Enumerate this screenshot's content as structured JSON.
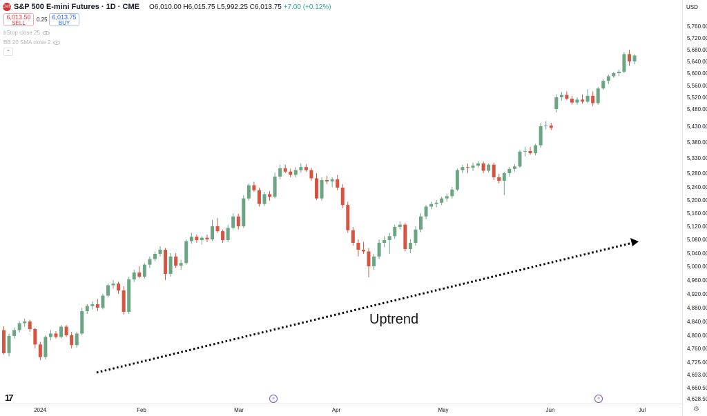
{
  "header": {
    "title": "S&P 500 E-mini Futures · 1D · CME",
    "open": "O6,010.00",
    "high": "H6,015.75",
    "low": "L5,992.25",
    "close": "C6,013.75",
    "change": "+7.00 (+0.12%)"
  },
  "trade": {
    "sell_price": "6,013.50",
    "sell_label": "SELL",
    "spread": "0.25",
    "buy_price": "6,013.75",
    "buy_label": "BUY"
  },
  "indicators": [
    {
      "label": "bStop close 25"
    },
    {
      "label": "BB 20 SMA close 2"
    }
  ],
  "currency": "USD",
  "colors": {
    "up": "#6ba583",
    "down": "#d75442",
    "arrow": "#000000",
    "event": "#7e57c2"
  },
  "chart_data": {
    "type": "candlestick",
    "title": "S&P 500 E-mini Futures · 1D · CME",
    "y_ticks": [
      5760,
      5720,
      5680,
      5640,
      5600,
      5560,
      5520,
      5480,
      5430,
      5380,
      5330,
      5280,
      5240,
      5200,
      5160,
      5120,
      5080,
      5040,
      5000,
      4960,
      4920,
      4880,
      4840,
      4800,
      4760,
      4725,
      4693,
      4660.5,
      4628.5
    ],
    "y_tick_labels": [
      "5,760.00",
      "5,720.00",
      "5,680.00",
      "5,640.00",
      "5,600.00",
      "5,560.00",
      "5,520.00",
      "5,480.00",
      "5,430.00",
      "5,380.00",
      "5,330.00",
      "5,280.00",
      "5,240.00",
      "5,200.00",
      "5,160.00",
      "5,120.00",
      "5,080.00",
      "5,040.00",
      "5,000.00",
      "4,960.00",
      "4,920.00",
      "4,880.00",
      "4,840.00",
      "4,800.00",
      "4,760.00",
      "4,725.00",
      "4,693.00",
      "4,660.50",
      "4,628.50"
    ],
    "x_labels": [
      "2024",
      "Feb",
      "Mar",
      "Apr",
      "May",
      "Jun",
      "Jul"
    ],
    "annotation": "Uptrend",
    "candles": [
      [
        4815,
        4826,
        4744,
        4748
      ],
      [
        4748,
        4805,
        4740,
        4798
      ],
      [
        4798,
        4822,
        4790,
        4815
      ],
      [
        4815,
        4840,
        4808,
        4835
      ],
      [
        4835,
        4848,
        4825,
        4840
      ],
      [
        4840,
        4845,
        4810,
        4818
      ],
      [
        4818,
        4822,
        4760,
        4772
      ],
      [
        4772,
        4780,
        4730,
        4738
      ],
      [
        4738,
        4800,
        4732,
        4795
      ],
      [
        4795,
        4815,
        4785,
        4805
      ],
      [
        4805,
        4812,
        4790,
        4795
      ],
      [
        4795,
        4830,
        4790,
        4825
      ],
      [
        4825,
        4830,
        4795,
        4800
      ],
      [
        4800,
        4810,
        4760,
        4770
      ],
      [
        4770,
        4810,
        4762,
        4805
      ],
      [
        4805,
        4880,
        4800,
        4870
      ],
      [
        4870,
        4890,
        4862,
        4885
      ],
      [
        4885,
        4898,
        4875,
        4890
      ],
      [
        4890,
        4905,
        4870,
        4880
      ],
      [
        4880,
        4920,
        4875,
        4915
      ],
      [
        4915,
        4950,
        4910,
        4945
      ],
      [
        4945,
        4960,
        4935,
        4950
      ],
      [
        4950,
        4955,
        4920,
        4930
      ],
      [
        4930,
        4942,
        4860,
        4868
      ],
      [
        4868,
        4970,
        4862,
        4962
      ],
      [
        4962,
        4990,
        4955,
        4982
      ],
      [
        4982,
        5000,
        4965,
        4970
      ],
      [
        4970,
        5010,
        4965,
        5005
      ],
      [
        5005,
        5030,
        4995,
        5022
      ],
      [
        5022,
        5045,
        5015,
        5038
      ],
      [
        5038,
        5060,
        5030,
        5050
      ],
      [
        5050,
        5055,
        4960,
        4978
      ],
      [
        4978,
        5040,
        4970,
        5030
      ],
      [
        5030,
        5040,
        4995,
        5002
      ],
      [
        5002,
        5020,
        4990,
        5010
      ],
      [
        5010,
        5080,
        5005,
        5075
      ],
      [
        5075,
        5100,
        5068,
        5088
      ],
      [
        5088,
        5095,
        5070,
        5078
      ],
      [
        5078,
        5090,
        5065,
        5085
      ],
      [
        5085,
        5095,
        5072,
        5080
      ],
      [
        5080,
        5140,
        5075,
        5120
      ],
      [
        5120,
        5145,
        5100,
        5105
      ],
      [
        5105,
        5110,
        5070,
        5078
      ],
      [
        5078,
        5125,
        5072,
        5115
      ],
      [
        5115,
        5160,
        5110,
        5150
      ],
      [
        5150,
        5158,
        5110,
        5120
      ],
      [
        5120,
        5215,
        5115,
        5205
      ],
      [
        5205,
        5250,
        5198,
        5245
      ],
      [
        5245,
        5255,
        5225,
        5230
      ],
      [
        5230,
        5238,
        5180,
        5188
      ],
      [
        5188,
        5225,
        5182,
        5218
      ],
      [
        5218,
        5228,
        5198,
        5210
      ],
      [
        5210,
        5282,
        5205,
        5270
      ],
      [
        5270,
        5308,
        5262,
        5296
      ],
      [
        5296,
        5308,
        5280,
        5285
      ],
      [
        5285,
        5295,
        5268,
        5275
      ],
      [
        5275,
        5300,
        5268,
        5290
      ],
      [
        5290,
        5312,
        5282,
        5300
      ],
      [
        5300,
        5310,
        5285,
        5290
      ],
      [
        5290,
        5298,
        5258,
        5265
      ],
      [
        5265,
        5280,
        5200,
        5205
      ],
      [
        5205,
        5268,
        5198,
        5260
      ],
      [
        5260,
        5272,
        5248,
        5256
      ],
      [
        5256,
        5268,
        5240,
        5262
      ],
      [
        5262,
        5275,
        5230,
        5238
      ],
      [
        5238,
        5248,
        5175,
        5185
      ],
      [
        5185,
        5195,
        5100,
        5108
      ],
      [
        5108,
        5118,
        5062,
        5070
      ],
      [
        5070,
        5080,
        5030,
        5050
      ],
      [
        5050,
        5072,
        5038,
        5045
      ],
      [
        5045,
        5055,
        4968,
        5000
      ],
      [
        5000,
        5038,
        4990,
        5030
      ],
      [
        5030,
        5080,
        5022,
        5070
      ],
      [
        5070,
        5090,
        5058,
        5078
      ],
      [
        5078,
        5100,
        5038,
        5090
      ],
      [
        5090,
        5125,
        5082,
        5118
      ],
      [
        5118,
        5135,
        5110,
        5125
      ],
      [
        5125,
        5130,
        5045,
        5052
      ],
      [
        5052,
        5080,
        5040,
        5070
      ],
      [
        5070,
        5120,
        5062,
        5110
      ],
      [
        5110,
        5160,
        5102,
        5150
      ],
      [
        5150,
        5185,
        5142,
        5180
      ],
      [
        5180,
        5195,
        5172,
        5188
      ],
      [
        5188,
        5200,
        5178,
        5192
      ],
      [
        5192,
        5210,
        5185,
        5205
      ],
      [
        5205,
        5220,
        5195,
        5212
      ],
      [
        5212,
        5240,
        5205,
        5232
      ],
      [
        5232,
        5295,
        5228,
        5290
      ],
      [
        5290,
        5308,
        5280,
        5300
      ],
      [
        5300,
        5312,
        5280,
        5298
      ],
      [
        5298,
        5315,
        5288,
        5305
      ],
      [
        5305,
        5320,
        5298,
        5312
      ],
      [
        5312,
        5318,
        5280,
        5288
      ],
      [
        5288,
        5312,
        5282,
        5308
      ],
      [
        5308,
        5315,
        5260,
        5268
      ],
      [
        5268,
        5278,
        5250,
        5258
      ],
      [
        5258,
        5285,
        5215,
        5280
      ],
      [
        5280,
        5300,
        5270,
        5294
      ],
      [
        5294,
        5310,
        5285,
        5302
      ],
      [
        5302,
        5355,
        5298,
        5350
      ],
      [
        5350,
        5365,
        5335,
        5352
      ],
      [
        5352,
        5365,
        5340,
        5345
      ],
      [
        5345,
        5375,
        5338,
        5370
      ],
      [
        5370,
        5440,
        5362,
        5430
      ],
      [
        5430,
        5445,
        5420,
        5432
      ],
      [
        5432,
        5440,
        5418,
        5425
      ],
      [
        5480,
        5530,
        5470,
        5520
      ],
      [
        5520,
        5538,
        5508,
        5528
      ],
      [
        5528,
        5540,
        5510,
        5515
      ],
      [
        5515,
        5525,
        5495,
        5502
      ],
      [
        5502,
        5520,
        5495,
        5512
      ],
      [
        5512,
        5530,
        5498,
        5505
      ],
      [
        5505,
        5548,
        5500,
        5525
      ],
      [
        5525,
        5540,
        5490,
        5500
      ],
      [
        5500,
        5555,
        5495,
        5550
      ],
      [
        5550,
        5580,
        5545,
        5575
      ],
      [
        5575,
        5595,
        5565,
        5590
      ],
      [
        5590,
        5605,
        5585,
        5600
      ],
      [
        5600,
        5612,
        5590,
        5605
      ],
      [
        5605,
        5672,
        5600,
        5665
      ],
      [
        5665,
        5680,
        5625,
        5640
      ],
      [
        5640,
        5665,
        5630,
        5660
      ]
    ]
  }
}
